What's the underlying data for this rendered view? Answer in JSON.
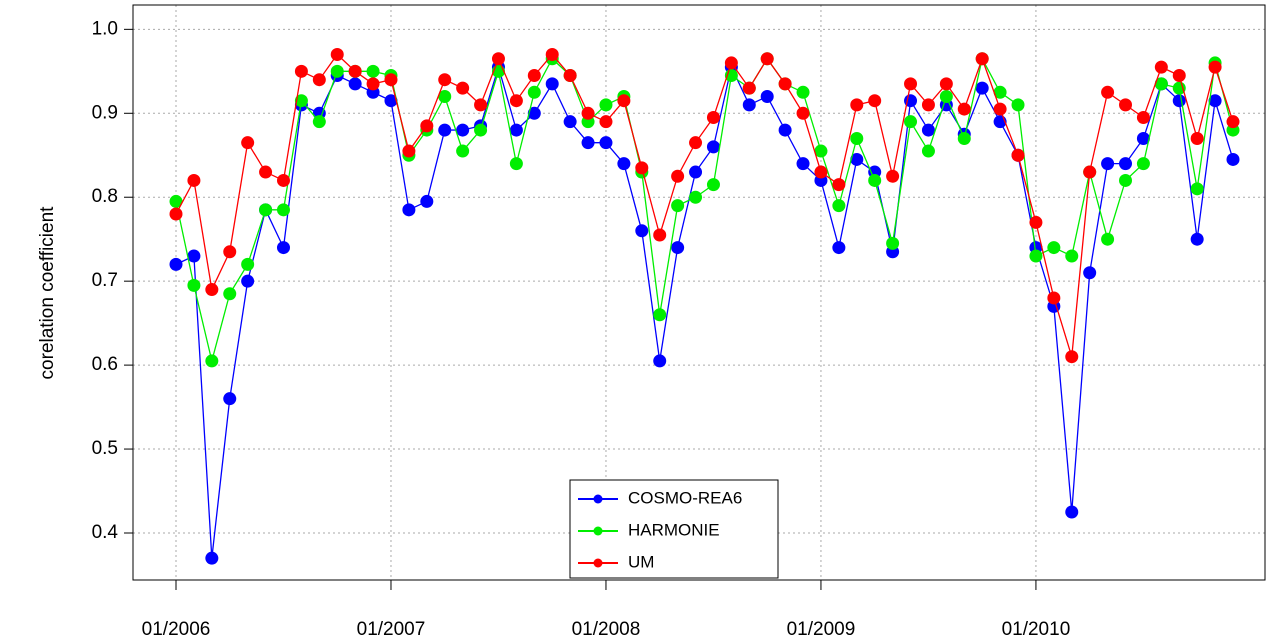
{
  "chart_data": {
    "type": "line",
    "y_label": "corelation coefficient",
    "categories": [
      "01/2006",
      null,
      null,
      null,
      null,
      null,
      null,
      null,
      null,
      null,
      null,
      null,
      "01/2007",
      null,
      null,
      null,
      null,
      null,
      null,
      null,
      null,
      null,
      null,
      null,
      "01/2008",
      null,
      null,
      null,
      null,
      null,
      null,
      null,
      null,
      null,
      null,
      null,
      "01/2009",
      null,
      null,
      null,
      null,
      null,
      null,
      null,
      null,
      null,
      null,
      null,
      "01/2010",
      null,
      null,
      null,
      null,
      null,
      null,
      null,
      null,
      null,
      null,
      null
    ],
    "ylim": [
      0.344,
      1.029
    ],
    "yticks": [
      {
        "value": 0.4,
        "label": "0.4"
      },
      {
        "value": 0.5,
        "label": "0.5"
      },
      {
        "value": 0.6,
        "label": "0.6"
      },
      {
        "value": 0.7,
        "label": "0.7"
      },
      {
        "value": 0.8,
        "label": "0.8"
      },
      {
        "value": 0.9,
        "label": "0.9"
      },
      {
        "value": 1.0,
        "label": "1.0"
      }
    ],
    "grid": true,
    "legend": "bottom",
    "series": [
      {
        "name": "COSMO-REA6",
        "color": "#0000ff",
        "values": [
          0.72,
          0.73,
          0.37,
          0.56,
          0.7,
          0.785,
          0.74,
          0.91,
          0.9,
          0.945,
          0.935,
          0.925,
          0.915,
          0.785,
          0.795,
          0.88,
          0.88,
          0.885,
          0.955,
          0.88,
          0.9,
          0.935,
          0.89,
          0.865,
          0.865,
          0.84,
          0.76,
          0.605,
          0.74,
          0.83,
          0.86,
          0.955,
          0.91,
          0.92,
          0.88,
          0.84,
          0.82,
          0.74,
          0.845,
          0.83,
          0.735,
          0.915,
          0.88,
          0.91,
          0.875,
          0.93,
          0.89,
          0.85,
          0.74,
          0.67,
          0.425,
          0.71,
          0.84,
          0.84,
          0.87,
          0.935,
          0.915,
          0.75,
          0.915,
          0.845
        ]
      },
      {
        "name": "HARMONIE",
        "color": "#00ee00",
        "values": [
          0.795,
          0.695,
          0.605,
          0.685,
          0.72,
          0.785,
          0.785,
          0.915,
          0.89,
          0.95,
          0.95,
          0.95,
          0.945,
          0.85,
          0.88,
          0.92,
          0.855,
          0.88,
          0.95,
          0.84,
          0.925,
          0.965,
          0.945,
          0.89,
          0.91,
          0.92,
          0.83,
          0.66,
          0.79,
          0.8,
          0.815,
          0.945,
          0.93,
          0.965,
          0.935,
          0.925,
          0.855,
          0.79,
          0.87,
          0.82,
          0.745,
          0.89,
          0.855,
          0.92,
          0.87,
          0.965,
          0.925,
          0.91,
          0.73,
          0.74,
          0.73,
          0.83,
          0.75,
          0.82,
          0.84,
          0.935,
          0.93,
          0.81,
          0.96,
          0.88
        ]
      },
      {
        "name": "UM",
        "color": "#ff0000",
        "values": [
          0.78,
          0.82,
          0.69,
          0.735,
          0.865,
          0.83,
          0.82,
          0.95,
          0.94,
          0.97,
          0.95,
          0.935,
          0.94,
          0.855,
          0.885,
          0.94,
          0.93,
          0.91,
          0.965,
          0.915,
          0.945,
          0.97,
          0.945,
          0.9,
          0.89,
          0.915,
          0.835,
          0.755,
          0.825,
          0.865,
          0.895,
          0.96,
          0.93,
          0.965,
          0.935,
          0.9,
          0.83,
          0.815,
          0.91,
          0.915,
          0.825,
          0.935,
          0.91,
          0.935,
          0.905,
          0.965,
          0.905,
          0.85,
          0.77,
          0.68,
          0.61,
          0.83,
          0.925,
          0.91,
          0.895,
          0.955,
          0.945,
          0.87,
          0.955,
          0.89
        ]
      }
    ]
  }
}
